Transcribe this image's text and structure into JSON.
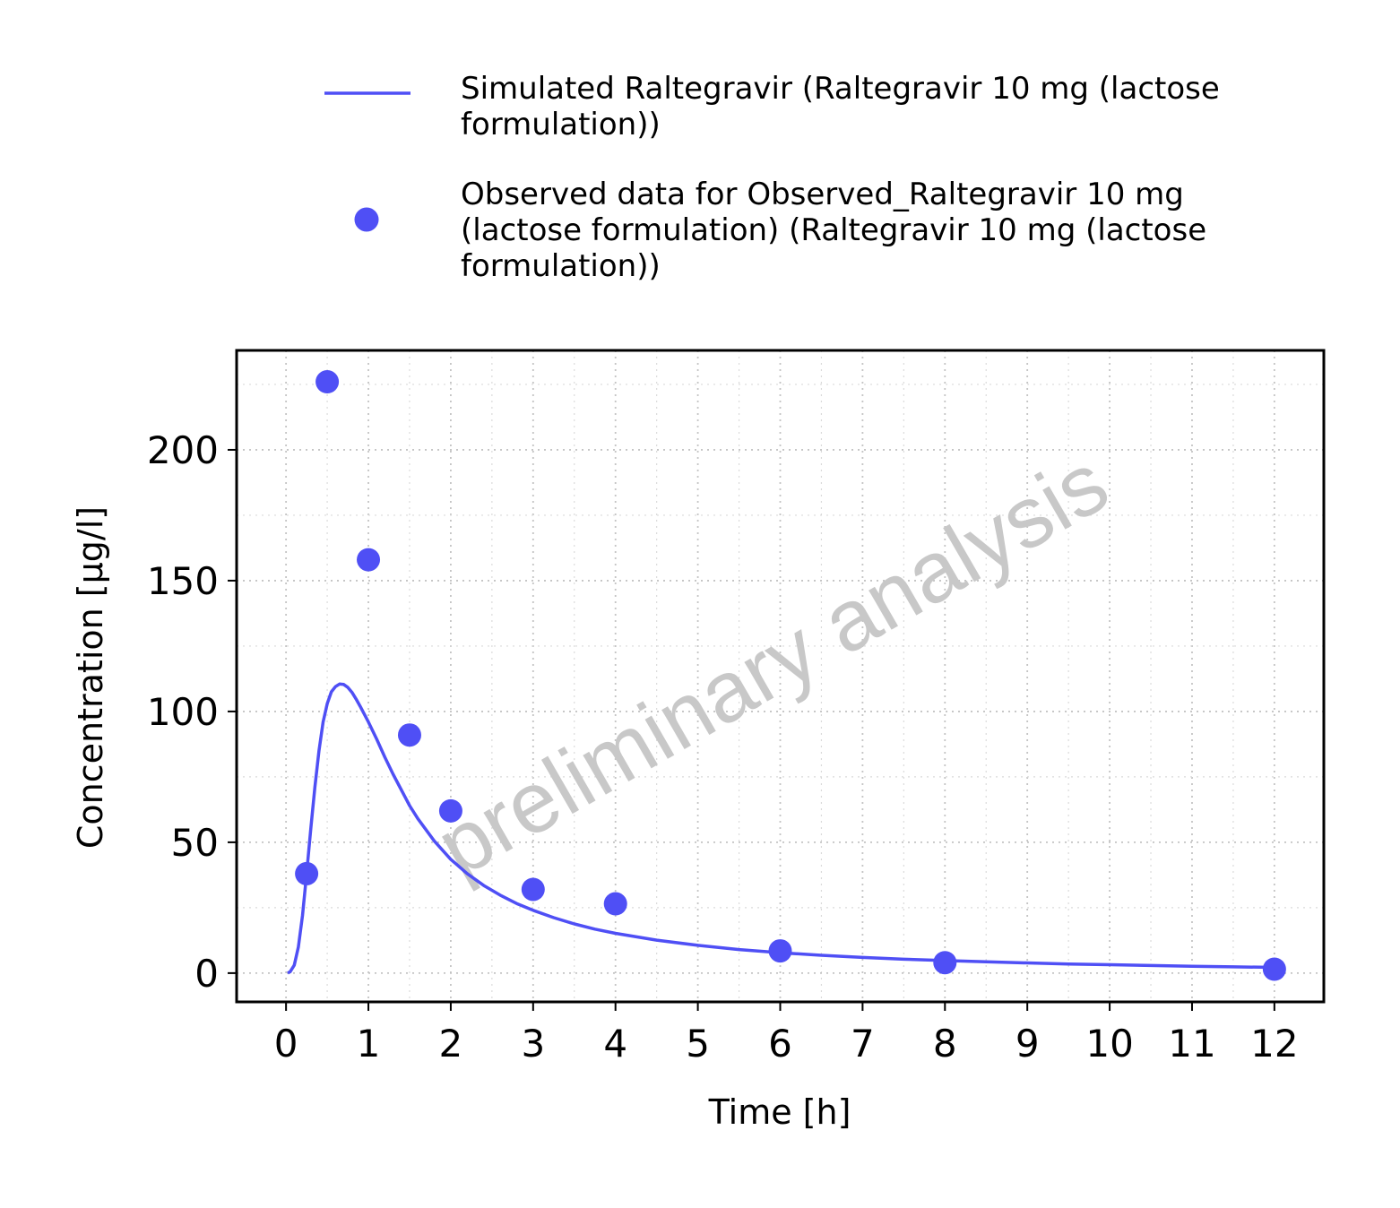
{
  "chart_data": {
    "type": "line",
    "xlabel": "Time [h]",
    "ylabel": "Concentration [µg/l]",
    "xlim": [
      -0.6,
      12.6
    ],
    "ylim": [
      -11,
      238
    ],
    "x_ticks": [
      "0",
      "1",
      "2",
      "3",
      "4",
      "5",
      "6",
      "7",
      "8",
      "9",
      "10",
      "11",
      "12"
    ],
    "y_ticks": [
      "0",
      "50",
      "100",
      "150",
      "200"
    ],
    "grid": true,
    "legend_position": "top",
    "watermark": "preliminary analysis",
    "series": [
      {
        "name": "Simulated Raltegravir (Raltegravir 10 mg (lactose formulation))",
        "kind": "line",
        "color": "#4f4ff5",
        "x": [
          0.02,
          0.05,
          0.1,
          0.15,
          0.2,
          0.25,
          0.3,
          0.35,
          0.4,
          0.45,
          0.5,
          0.55,
          0.6,
          0.65,
          0.7,
          0.75,
          0.8,
          0.85,
          0.9,
          1.0,
          1.1,
          1.2,
          1.3,
          1.4,
          1.5,
          1.6,
          1.8,
          2.0,
          2.2,
          2.4,
          2.6,
          2.8,
          3.0,
          3.25,
          3.5,
          3.75,
          4.0,
          4.5,
          5.0,
          5.5,
          6.0,
          6.5,
          7.0,
          7.5,
          8.0,
          8.5,
          9.0,
          9.5,
          10.0,
          10.5,
          11.0,
          11.5,
          12.0
        ],
        "y": [
          0.0,
          0.5,
          3.0,
          10.0,
          22.0,
          38.0,
          55.0,
          71.0,
          85.0,
          96.0,
          103.0,
          107.5,
          109.5,
          110.5,
          110.3,
          109.2,
          107.3,
          104.8,
          102.0,
          96.0,
          89.5,
          82.5,
          76.0,
          70.0,
          64.0,
          59.0,
          50.5,
          43.5,
          38.0,
          33.5,
          29.8,
          26.6,
          24.0,
          21.2,
          18.8,
          16.8,
          15.2,
          12.6,
          10.6,
          9.0,
          7.8,
          6.8,
          6.0,
          5.3,
          4.8,
          4.3,
          3.9,
          3.5,
          3.2,
          2.9,
          2.6,
          2.4,
          2.2
        ]
      },
      {
        "name": "Observed data for Observed_Raltegravir 10 mg (lactose formulation) (Raltegravir 10 mg (lactose formulation))",
        "kind": "scatter",
        "color": "#4f4ff5",
        "x": [
          0.25,
          0.5,
          1.0,
          1.5,
          2.0,
          3.0,
          4.0,
          6.0,
          8.0,
          12.0
        ],
        "y": [
          38,
          226,
          158,
          91,
          62,
          32,
          26.5,
          8.5,
          4,
          1.5
        ]
      }
    ]
  },
  "legend": {
    "line_entry_lines": [
      "Simulated Raltegravir (Raltegravir 10 mg (lactose",
      "formulation))"
    ],
    "point_entry_lines": [
      "Observed data for Observed_Raltegravir 10 mg",
      "(lactose formulation) (Raltegravir 10 mg (lactose",
      "formulation))"
    ]
  }
}
